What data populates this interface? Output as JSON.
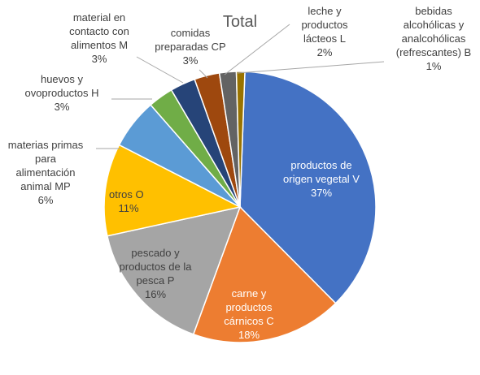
{
  "chart_data": {
    "type": "pie",
    "title": "Total",
    "slices": [
      {
        "name": "productos de origen vegetal V",
        "value": 37,
        "label": "37%",
        "color": "#4472C4",
        "lines": [
          "productos de",
          "origen vegetal V"
        ]
      },
      {
        "name": "carne y productos cárnicos C",
        "value": 18,
        "label": "18%",
        "color": "#ED7D31",
        "lines": [
          "carne y",
          "productos",
          "cárnicos C"
        ]
      },
      {
        "name": "pescado y productos de la pesca P",
        "value": 16,
        "label": "16%",
        "color": "#A5A5A5",
        "lines": [
          "pescado y",
          "productos de la",
          "pesca P"
        ]
      },
      {
        "name": "otros O",
        "value": 11,
        "label": "11%",
        "color": "#FFC000",
        "lines": [
          "otros O"
        ]
      },
      {
        "name": "materias primas para alimentación animal MP",
        "value": 6,
        "label": "6%",
        "color": "#5B9BD5",
        "lines": [
          "materias primas",
          "para",
          "alimentación",
          "animal MP"
        ]
      },
      {
        "name": "huevos y ovoproductos H",
        "value": 3,
        "label": "3%",
        "color": "#70AD47",
        "lines": [
          "huevos y",
          "ovoproductos  H"
        ]
      },
      {
        "name": "material en contacto con alimentos M",
        "value": 3,
        "label": "3%",
        "color": "#264478",
        "lines": [
          "material en",
          "contacto con",
          "alimentos M"
        ]
      },
      {
        "name": "comidas preparadas CP",
        "value": 3,
        "label": "3%",
        "color": "#9E480E",
        "lines": [
          "comidas",
          "preparadas CP"
        ]
      },
      {
        "name": "leche y productos lácteos L",
        "value": 2,
        "label": "2%",
        "color": "#636363",
        "lines": [
          "leche y",
          "productos",
          "lácteos L"
        ]
      },
      {
        "name": "bebidas alcohólicas y analcohólicas (refrescantes) B",
        "value": 1,
        "label": "1%",
        "color": "#997300",
        "lines": [
          "bebidas",
          "alcohólicas y",
          "analcohólicas",
          "(refrescantes) B"
        ]
      }
    ],
    "legend": "none"
  }
}
